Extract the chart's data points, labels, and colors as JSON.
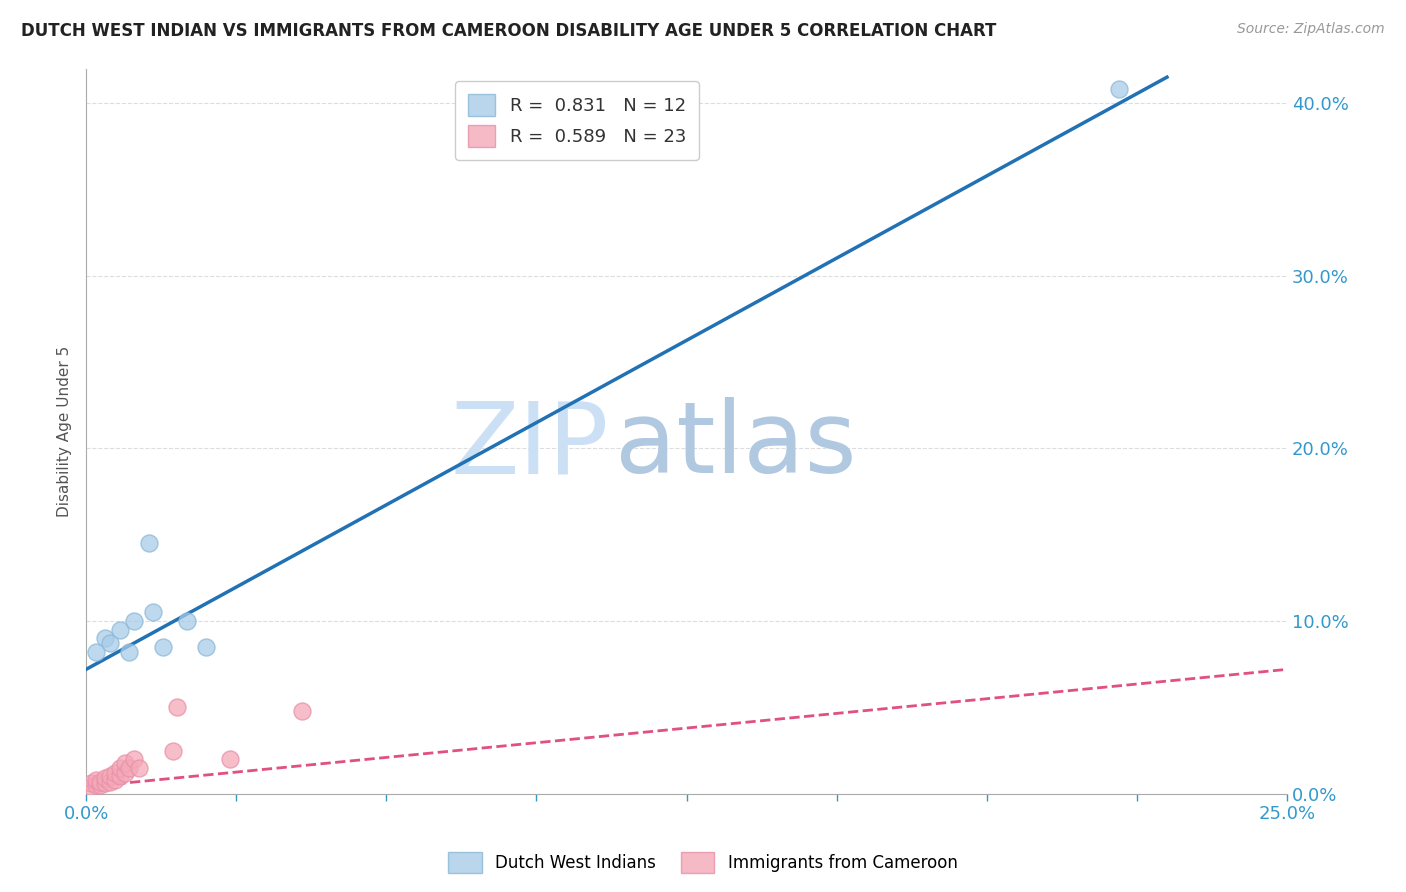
{
  "title": "DUTCH WEST INDIAN VS IMMIGRANTS FROM CAMEROON DISABILITY AGE UNDER 5 CORRELATION CHART",
  "source": "Source: ZipAtlas.com",
  "ylabel": "Disability Age Under 5",
  "xmin": 0.0,
  "xmax": 0.25,
  "ymin": 0.0,
  "ymax": 0.42,
  "x_ticks": [
    0.0,
    0.03125,
    0.0625,
    0.09375,
    0.125,
    0.15625,
    0.1875,
    0.21875,
    0.25
  ],
  "x_label_ticks": [
    0.0,
    0.25
  ],
  "x_label_values": [
    "0.0%",
    "25.0%"
  ],
  "y_ticks": [
    0.0,
    0.1,
    0.2,
    0.3,
    0.4
  ],
  "y_label_values": [
    "0.0%",
    "10.0%",
    "20.0%",
    "30.0%",
    "40.0%"
  ],
  "blue_scatter_x": [
    0.002,
    0.004,
    0.005,
    0.007,
    0.009,
    0.01,
    0.013,
    0.014,
    0.016,
    0.021,
    0.025,
    0.215
  ],
  "blue_scatter_y": [
    0.082,
    0.09,
    0.087,
    0.095,
    0.082,
    0.1,
    0.145,
    0.105,
    0.085,
    0.1,
    0.085,
    0.408
  ],
  "pink_scatter_x": [
    0.001,
    0.001,
    0.002,
    0.002,
    0.003,
    0.003,
    0.004,
    0.004,
    0.005,
    0.005,
    0.006,
    0.006,
    0.007,
    0.007,
    0.008,
    0.008,
    0.009,
    0.01,
    0.011,
    0.018,
    0.019,
    0.03,
    0.045
  ],
  "pink_scatter_y": [
    0.004,
    0.006,
    0.005,
    0.008,
    0.005,
    0.007,
    0.006,
    0.009,
    0.007,
    0.01,
    0.008,
    0.012,
    0.01,
    0.015,
    0.012,
    0.018,
    0.015,
    0.02,
    0.015,
    0.025,
    0.05,
    0.02,
    0.048
  ],
  "blue_line_x": [
    0.0,
    0.225
  ],
  "blue_line_y": [
    0.072,
    0.415
  ],
  "pink_line_x": [
    0.0,
    0.25
  ],
  "pink_line_y": [
    0.004,
    0.072
  ],
  "blue_color": "#a8cce8",
  "pink_color": "#f4a8b8",
  "blue_scatter_edge": "#8ab8d8",
  "pink_scatter_edge": "#e890a8",
  "blue_line_color": "#2171b5",
  "pink_line_color": "#e05080",
  "watermark_zip": "ZIP",
  "watermark_atlas": "atlas",
  "legend_blue_r": "0.831",
  "legend_blue_n": "12",
  "legend_pink_r": "0.589",
  "legend_pink_n": "23",
  "legend_label_blue": "Dutch West Indians",
  "legend_label_pink": "Immigrants from Cameroon",
  "background_color": "#ffffff",
  "grid_color": "#dddddd"
}
